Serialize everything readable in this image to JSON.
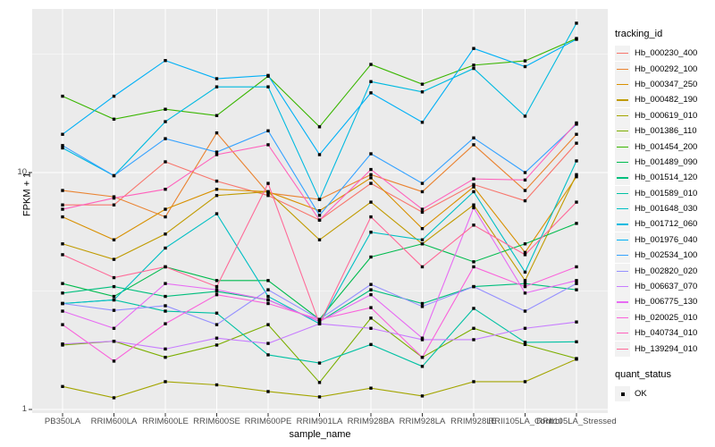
{
  "figure": {
    "background": "#FFFFFF",
    "panel_bg": "#EBEBEB",
    "grid_color": "#FFFFFF",
    "tick_color": "#333333",
    "tick_label_color": "#4D4D4D",
    "point_color": "#000000"
  },
  "chart_data": {
    "type": "line",
    "title": "",
    "xlabel": "sample_name",
    "ylabel": "FPKM + 1",
    "y_scale": "log10",
    "ylim": [
      1,
      48
    ],
    "y_major_ticks": [
      1,
      10
    ],
    "y_minor_gridlines": [
      3.1623,
      31.623
    ],
    "grid": true,
    "point_marker": "black-square",
    "categories": [
      "PB350LA",
      "RRIM600LA",
      "RRIM600LE",
      "RRIM600SE",
      "RRIM600PE",
      "RRIM901LA",
      "RRIM928BA",
      "RRIM928LA",
      "RRIM928LE",
      "RRII105LA_Control",
      "RRII105LA_Stressed"
    ],
    "legend": {
      "title": "tracking_id",
      "position": "right"
    },
    "legend2": {
      "title": "quant_status",
      "items": [
        {
          "label": "OK",
          "marker": "black-square"
        }
      ]
    },
    "series": [
      {
        "name": "Hb_000230_400",
        "color": "#F8766D",
        "values": [
          7.3,
          7.3,
          11.1,
          9.2,
          8.0,
          6.3,
          9.0,
          6.8,
          8.9,
          7.6,
          13.3
        ]
      },
      {
        "name": "Hb_000292_100",
        "color": "#EA8331",
        "values": [
          8.4,
          7.9,
          6.5,
          14.7,
          8.2,
          7.7,
          9.8,
          8.3,
          13.1,
          8.4,
          14.5
        ]
      },
      {
        "name": "Hb_000347_250",
        "color": "#D89000",
        "values": [
          6.5,
          5.2,
          7.0,
          8.5,
          8.3,
          6.9,
          9.5,
          5.8,
          8.7,
          4.6,
          9.6
        ]
      },
      {
        "name": "Hb_000482_190",
        "color": "#C09B00",
        "values": [
          5.0,
          4.3,
          5.5,
          8.0,
          8.3,
          5.2,
          7.5,
          5.0,
          7.3,
          3.5,
          9.8
        ]
      },
      {
        "name": "Hb_000619_010",
        "color": "#A3A500",
        "values": [
          1.25,
          1.12,
          1.31,
          1.27,
          1.19,
          1.13,
          1.23,
          1.14,
          1.31,
          1.31,
          1.63
        ]
      },
      {
        "name": "Hb_001386_110",
        "color": "#7CAE00",
        "values": [
          1.87,
          1.94,
          1.66,
          1.87,
          2.28,
          1.3,
          2.43,
          1.66,
          2.2,
          1.88,
          1.64
        ]
      },
      {
        "name": "Hb_001454_200",
        "color": "#39B600",
        "values": [
          21.0,
          16.8,
          18.5,
          17.4,
          25.5,
          15.6,
          28.6,
          23.6,
          28.4,
          29.6,
          36.8
        ]
      },
      {
        "name": "Hb_001489_090",
        "color": "#00BB4E",
        "values": [
          3.4,
          3.0,
          4.0,
          3.5,
          3.5,
          2.4,
          4.4,
          5.0,
          4.2,
          5.0,
          6.1
        ]
      },
      {
        "name": "Hb_001514_120",
        "color": "#00BF7D",
        "values": [
          3.1,
          3.3,
          3.0,
          3.15,
          2.9,
          2.35,
          3.2,
          2.8,
          3.3,
          3.4,
          3.2
        ]
      },
      {
        "name": "Hb_001589_010",
        "color": "#00C1A3",
        "values": [
          2.8,
          2.9,
          2.6,
          2.55,
          1.7,
          1.57,
          1.88,
          1.52,
          2.67,
          1.92,
          1.93
        ]
      },
      {
        "name": "Hb_001648_030",
        "color": "#00BFC4",
        "values": [
          2.8,
          2.9,
          4.8,
          6.7,
          3.0,
          2.3,
          5.6,
          5.2,
          8.3,
          3.8,
          11.2
        ]
      },
      {
        "name": "Hb_001712_060",
        "color": "#00BAE0",
        "values": [
          12.7,
          9.7,
          16.4,
          23.0,
          23.0,
          7.7,
          24.2,
          21.9,
          27.5,
          17.3,
          42.7
        ]
      },
      {
        "name": "Hb_001976_040",
        "color": "#00B0F6",
        "values": [
          14.5,
          21.0,
          29.7,
          24.9,
          25.7,
          11.9,
          21.7,
          16.3,
          33.4,
          28.0,
          36.5
        ]
      },
      {
        "name": "Hb_002534_100",
        "color": "#35A2FF",
        "values": [
          13.0,
          9.7,
          13.9,
          12.2,
          15.0,
          6.6,
          12.0,
          9.0,
          14.0,
          10.0,
          16.0
        ]
      },
      {
        "name": "Hb_002820_020",
        "color": "#9590FF",
        "values": [
          2.8,
          2.62,
          2.74,
          2.28,
          3.2,
          2.4,
          3.37,
          2.72,
          3.3,
          2.6,
          3.4
        ]
      },
      {
        "name": "Hb_006637_070",
        "color": "#C77CFF",
        "values": [
          1.89,
          1.94,
          1.8,
          2.0,
          1.9,
          2.3,
          2.2,
          1.97,
          1.97,
          2.2,
          2.34
        ]
      },
      {
        "name": "Hb_006775_130",
        "color": "#E76BF3",
        "values": [
          2.6,
          2.2,
          3.4,
          3.2,
          2.9,
          2.35,
          3.05,
          2.0,
          7.1,
          3.1,
          3.5
        ]
      },
      {
        "name": "Hb_020025_010",
        "color": "#FA62DB",
        "values": [
          2.28,
          1.6,
          2.3,
          3.05,
          2.8,
          2.4,
          2.69,
          1.66,
          4.0,
          3.3,
          4.0
        ]
      },
      {
        "name": "Hb_040734_010",
        "color": "#FF62BC",
        "values": [
          7.0,
          7.8,
          8.5,
          11.9,
          13.1,
          6.3,
          10.3,
          7.0,
          9.4,
          9.3,
          16.2
        ]
      },
      {
        "name": "Hb_139294_010",
        "color": "#FF6A98",
        "values": [
          4.5,
          3.6,
          4.0,
          3.3,
          9.0,
          2.3,
          6.5,
          4.0,
          6.0,
          4.5,
          7.5
        ]
      }
    ]
  }
}
